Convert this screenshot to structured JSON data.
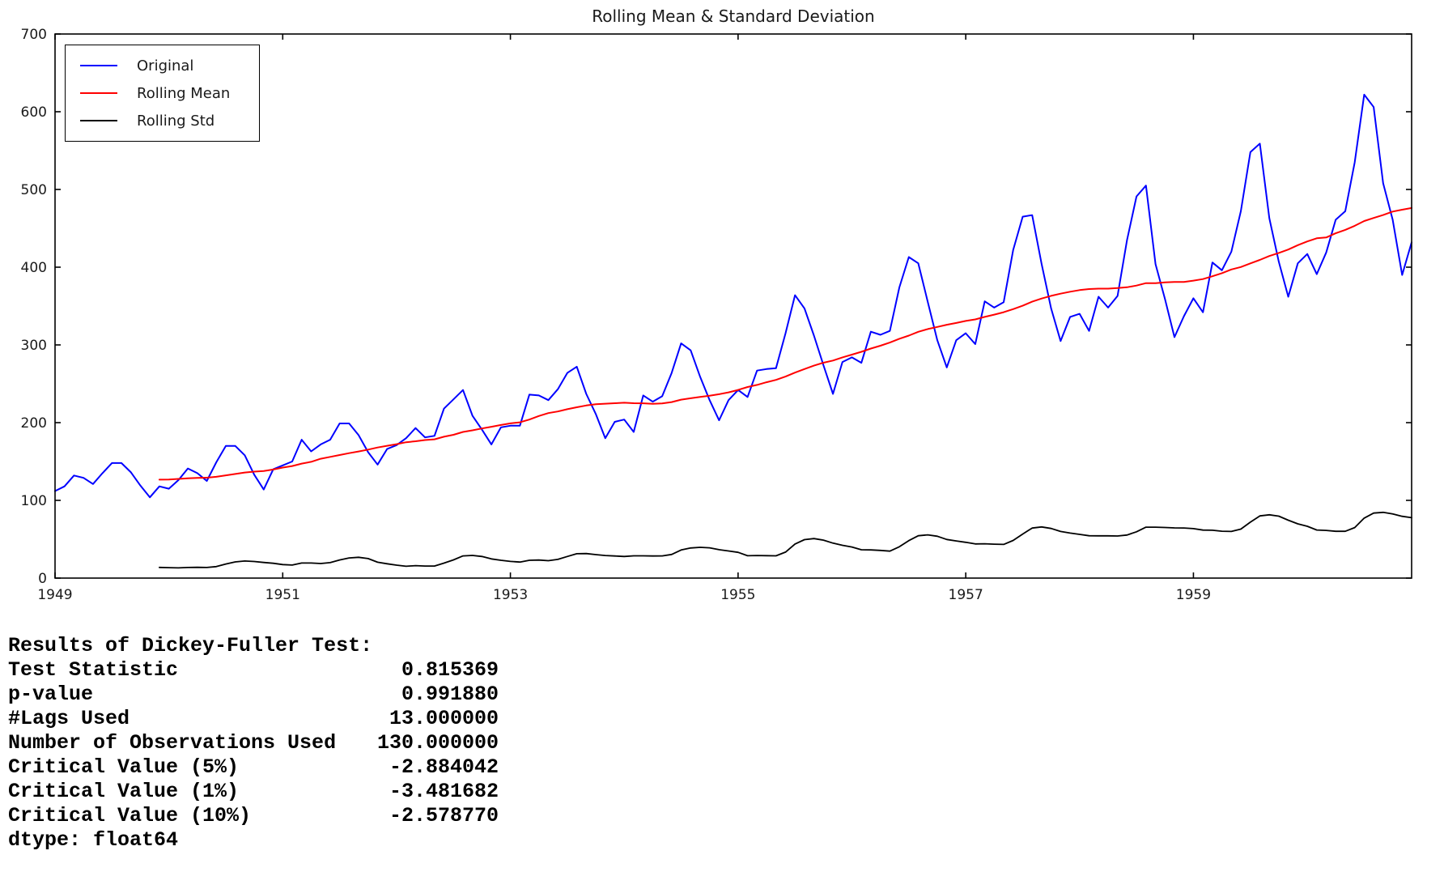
{
  "chart_data": {
    "type": "line",
    "title": "Rolling Mean & Standard Deviation",
    "x_start": "1949-01",
    "x_end": "1960-12",
    "x_points": 144,
    "x_tick_labels": [
      "1949",
      "1951",
      "1953",
      "1955",
      "1957",
      "1959"
    ],
    "y_ticks": [
      0,
      100,
      200,
      300,
      400,
      500,
      600,
      700
    ],
    "ylim": [
      0,
      700
    ],
    "grid": false,
    "legend_position": "upper left",
    "rolling_window": 12,
    "series": [
      {
        "name": "Original",
        "color": "#0000ff",
        "kind": "raw"
      },
      {
        "name": "Rolling Mean",
        "color": "#ff0000",
        "kind": "rolling_mean",
        "window": 12
      },
      {
        "name": "Rolling Std",
        "color": "#000000",
        "kind": "rolling_std",
        "window": 12
      }
    ],
    "values": [
      112,
      118,
      132,
      129,
      121,
      135,
      148,
      148,
      136,
      119,
      104,
      118,
      115,
      126,
      141,
      135,
      125,
      149,
      170,
      170,
      158,
      133,
      114,
      140,
      145,
      150,
      178,
      163,
      172,
      178,
      199,
      199,
      184,
      162,
      146,
      166,
      171,
      180,
      193,
      181,
      183,
      218,
      230,
      242,
      209,
      191,
      172,
      194,
      196,
      196,
      236,
      235,
      229,
      243,
      264,
      272,
      237,
      211,
      180,
      201,
      204,
      188,
      235,
      227,
      234,
      264,
      302,
      293,
      259,
      229,
      203,
      229,
      242,
      233,
      267,
      269,
      270,
      315,
      364,
      347,
      312,
      274,
      237,
      278,
      284,
      277,
      317,
      313,
      318,
      374,
      413,
      405,
      355,
      306,
      271,
      306,
      315,
      301,
      356,
      348,
      355,
      422,
      465,
      467,
      404,
      347,
      305,
      336,
      340,
      318,
      362,
      348,
      363,
      435,
      491,
      505,
      404,
      359,
      310,
      337,
      360,
      342,
      406,
      396,
      420,
      472,
      548,
      559,
      463,
      407,
      362,
      405,
      417,
      391,
      419,
      461,
      472,
      535,
      622,
      606,
      508,
      461,
      390,
      432
    ]
  },
  "df_results": {
    "header": "Results of Dickey-Fuller Test:",
    "rows": [
      {
        "label": "Test Statistic",
        "value": "0.815369"
      },
      {
        "label": "p-value",
        "value": "0.991880"
      },
      {
        "label": "#Lags Used",
        "value": "13.000000"
      },
      {
        "label": "Number of Observations Used",
        "value": "130.000000"
      },
      {
        "label": "Critical Value (5%)",
        "value": "-2.884042"
      },
      {
        "label": "Critical Value (1%)",
        "value": "-3.481682"
      },
      {
        "label": "Critical Value (10%)",
        "value": "-2.578770"
      }
    ],
    "footer": "dtype: float64"
  }
}
